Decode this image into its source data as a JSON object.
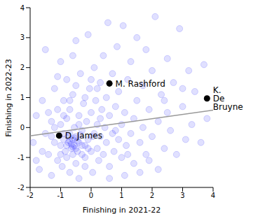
{
  "chart_data": {
    "type": "scatter",
    "x_label": "Finishing in 2021-22",
    "y_label": "Finishing in 2022-23",
    "xlim": [
      -2,
      4
    ],
    "ylim": [
      -2,
      4
    ],
    "xticks": [
      -2,
      -1,
      0,
      1,
      2,
      3,
      4
    ],
    "yticks": [
      -2,
      -1,
      0,
      1,
      2,
      3,
      4
    ],
    "grid": false,
    "series": [
      {
        "color": "#0000ff",
        "marker": "circle",
        "values": [
          [
            -1.9,
            -0.5
          ],
          [
            -1.8,
            0.4
          ],
          [
            -1.7,
            -1.4
          ],
          [
            -1.6,
            0.9
          ],
          [
            -1.5,
            -0.2
          ],
          [
            -1.5,
            2.6
          ],
          [
            -1.4,
            -0.9
          ],
          [
            -1.3,
            0.2
          ],
          [
            -1.3,
            -1.6
          ],
          [
            -1.2,
            1.3
          ],
          [
            -1.2,
            -0.5
          ],
          [
            -1.1,
            0.6
          ],
          [
            -1.1,
            -1.1
          ],
          [
            -1.0,
            2.2
          ],
          [
            -1.0,
            -0.6
          ],
          [
            -1.0,
            0.1
          ],
          [
            -0.95,
            -1.3
          ],
          [
            -0.9,
            0.9
          ],
          [
            -0.9,
            -0.4
          ],
          [
            -0.85,
            -0.8
          ],
          [
            -0.8,
            1.6
          ],
          [
            -0.8,
            0.3
          ],
          [
            -0.8,
            -1.0
          ],
          [
            -0.75,
            -0.5
          ],
          [
            -0.7,
            -0.2
          ],
          [
            -0.7,
            -1.5
          ],
          [
            -0.7,
            0.6
          ],
          [
            -0.65,
            -0.7
          ],
          [
            -0.6,
            -0.4
          ],
          [
            -0.6,
            -0.9
          ],
          [
            -0.6,
            1.1
          ],
          [
            -0.55,
            -0.6
          ],
          [
            -0.55,
            0.0
          ],
          [
            -0.5,
            -0.3
          ],
          [
            -0.5,
            -1.2
          ],
          [
            -0.5,
            2.9
          ],
          [
            -0.45,
            -0.8
          ],
          [
            -0.4,
            0.4
          ],
          [
            -0.4,
            -0.5
          ],
          [
            -0.4,
            -1.7
          ],
          [
            -0.35,
            1.8
          ],
          [
            -0.3,
            -0.1
          ],
          [
            -0.3,
            -0.9
          ],
          [
            -0.25,
            0.8
          ],
          [
            -0.2,
            -0.6
          ],
          [
            -0.2,
            -1.3
          ],
          [
            -0.15,
            0.2
          ],
          [
            -0.1,
            3.1
          ],
          [
            -0.1,
            -0.4
          ],
          [
            -0.05,
            1.3
          ],
          [
            0.0,
            -0.8
          ],
          [
            0.0,
            0.5
          ],
          [
            0.05,
            -1.5
          ],
          [
            0.1,
            -0.2
          ],
          [
            0.1,
            2.0
          ],
          [
            0.15,
            0.9
          ],
          [
            0.2,
            -0.7
          ],
          [
            0.2,
            0.1
          ],
          [
            0.25,
            -1.1
          ],
          [
            0.3,
            1.5
          ],
          [
            0.3,
            -0.3
          ],
          [
            0.35,
            0.6
          ],
          [
            0.4,
            -0.9
          ],
          [
            0.4,
            2.4
          ],
          [
            0.45,
            0.0
          ],
          [
            0.5,
            -0.5
          ],
          [
            0.5,
            1.0
          ],
          [
            0.55,
            3.5
          ],
          [
            0.6,
            -1.3
          ],
          [
            0.6,
            0.4
          ],
          [
            0.7,
            -0.2
          ],
          [
            0.7,
            1.8
          ],
          [
            0.75,
            -0.8
          ],
          [
            0.8,
            0.7
          ],
          [
            0.85,
            2.7
          ],
          [
            0.9,
            -0.4
          ],
          [
            0.9,
            1.2
          ],
          [
            1.0,
            0.1
          ],
          [
            1.0,
            -1.0
          ],
          [
            1.05,
            3.4
          ],
          [
            1.1,
            0.5
          ],
          [
            1.15,
            -0.6
          ],
          [
            1.2,
            1.6
          ],
          [
            1.3,
            -0.2
          ],
          [
            1.3,
            2.2
          ],
          [
            1.4,
            0.3
          ],
          [
            1.4,
            -1.2
          ],
          [
            1.5,
            0.9
          ],
          [
            1.5,
            3.0
          ],
          [
            1.6,
            -0.5
          ],
          [
            1.7,
            1.4
          ],
          [
            1.7,
            0.0
          ],
          [
            1.8,
            -0.9
          ],
          [
            1.8,
            2.6
          ],
          [
            1.9,
            0.6
          ],
          [
            2.0,
            -0.3
          ],
          [
            2.0,
            1.9
          ],
          [
            2.1,
            3.7
          ],
          [
            2.2,
            0.2
          ],
          [
            2.2,
            -1.4
          ],
          [
            2.3,
            1.1
          ],
          [
            2.4,
            -0.7
          ],
          [
            2.5,
            2.3
          ],
          [
            2.5,
            0.5
          ],
          [
            2.6,
            -0.1
          ],
          [
            2.7,
            1.5
          ],
          [
            2.8,
            -0.9
          ],
          [
            2.9,
            3.3
          ],
          [
            3.0,
            0.7
          ],
          [
            3.1,
            -0.4
          ],
          [
            3.2,
            1.9
          ],
          [
            3.3,
            0.1
          ],
          [
            3.4,
            1.2
          ],
          [
            3.6,
            -0.5
          ],
          [
            3.7,
            2.1
          ],
          [
            3.8,
            0.3
          ],
          [
            -0.7,
            -0.45
          ],
          [
            -0.65,
            -0.55
          ],
          [
            -0.6,
            -0.65
          ],
          [
            -0.55,
            -0.35
          ],
          [
            -0.5,
            -0.7
          ],
          [
            -0.75,
            -0.3
          ],
          [
            -0.45,
            -0.45
          ],
          [
            -0.8,
            -0.6
          ],
          [
            -0.9,
            -0.2
          ],
          [
            -1.0,
            -0.9
          ],
          [
            -0.3,
            -0.6
          ],
          [
            -0.35,
            -0.25
          ],
          [
            -0.2,
            -1.0
          ],
          [
            -0.1,
            -0.7
          ],
          [
            0.05,
            -0.3
          ],
          [
            -1.2,
            0.0
          ],
          [
            -1.4,
            0.5
          ],
          [
            -1.6,
            -0.8
          ],
          [
            -1.8,
            -1.1
          ],
          [
            -1.1,
            1.7
          ],
          [
            -0.6,
            2.4
          ],
          [
            -0.2,
            1.0
          ],
          [
            0.2,
            1.3
          ],
          [
            0.6,
            -1.7
          ],
          [
            1.1,
            -1.6
          ],
          [
            1.6,
            -1.5
          ],
          [
            1.2,
            -0.9
          ],
          [
            0.8,
            -0.1
          ],
          [
            -0.4,
            0.1
          ],
          [
            -0.9,
            0.4
          ],
          [
            -1.3,
            -0.3
          ],
          [
            -0.7,
            0.9
          ],
          [
            0.3,
            0.3
          ],
          [
            0.0,
            1.6
          ],
          [
            -0.5,
            1.4
          ],
          [
            1.9,
            -1.1
          ],
          [
            2.4,
            0.9
          ],
          [
            3.0,
            1.3
          ]
        ]
      }
    ],
    "highlights": {
      "color": "#000000",
      "points": [
        {
          "label": "M. Rashford",
          "x": 0.6,
          "y": 1.47
        },
        {
          "label": "K. De Bruyne",
          "x": 3.8,
          "y": 0.97
        },
        {
          "label": "D. James",
          "x": -1.05,
          "y": -0.27
        }
      ]
    },
    "trend": {
      "color": "#999999",
      "line_style": "solid",
      "x": [
        -2,
        4
      ],
      "y": [
        -0.28,
        0.58
      ]
    }
  }
}
